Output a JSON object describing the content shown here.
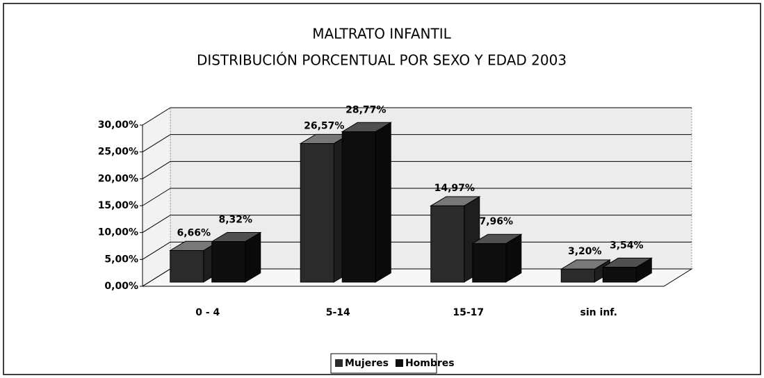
{
  "chart_data": {
    "type": "bar3d",
    "title": "MALTRATO INFANTIL",
    "subtitle": "DISTRIBUCIÓN PORCENTUAL POR SEXO Y EDAD 2003",
    "categories": [
      "0 - 4",
      "5-14",
      "15-17",
      "sin inf."
    ],
    "series": [
      {
        "name": "Mujeres",
        "color": "#2b2b2b",
        "values": [
          6.66,
          26.57,
          14.97,
          3.2
        ],
        "value_labels": [
          "6,66%",
          "26,57%",
          "14,97%",
          "3,20%"
        ]
      },
      {
        "name": "Hombres",
        "color": "#0e0e0e",
        "values": [
          8.32,
          28.77,
          7.96,
          3.54
        ],
        "value_labels": [
          "8,32%",
          "28,77%",
          "7,96%",
          "3,54%"
        ]
      }
    ],
    "ylim": [
      0,
      30
    ],
    "yticks": [
      {
        "value": 0,
        "label": "0,00%"
      },
      {
        "value": 5,
        "label": "5,00%"
      },
      {
        "value": 10,
        "label": "10,00%"
      },
      {
        "value": 15,
        "label": "15,00%"
      },
      {
        "value": 20,
        "label": "20,00%"
      },
      {
        "value": 25,
        "label": "25,00%"
      },
      {
        "value": 30,
        "label": "30,00%"
      }
    ],
    "grid": true,
    "legend": "bottom"
  }
}
